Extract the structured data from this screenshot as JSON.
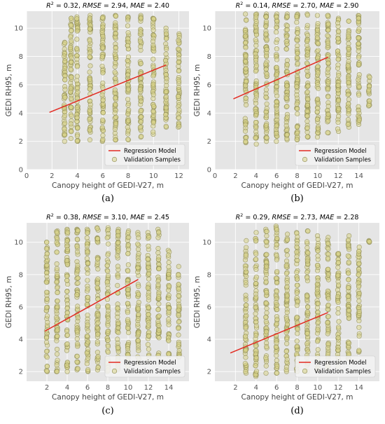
{
  "chart_data": [
    {
      "type": "scatter",
      "panel_label": "(a)",
      "title": "R² = 0.32, RMSE = 2.94, MAE = 2.40",
      "title_parts": {
        "r2_value": "0.32",
        "rmse_value": "2.94",
        "mae_value": "2.40"
      },
      "xlabel": "Canopy height of GEDI-V27, m",
      "ylabel": "GEDI RH95, m",
      "xlim": [
        0,
        12.8
      ],
      "ylim": [
        0,
        11.2
      ],
      "xticks": [
        0,
        2,
        4,
        6,
        8,
        10,
        12
      ],
      "yticks": [
        0,
        2,
        4,
        6,
        8,
        10
      ],
      "grid": true,
      "legend_position": "bottom-right",
      "legend": [
        "Regression Model",
        "Validation Samples"
      ],
      "regression_line": {
        "x": [
          1.8,
          11.0
        ],
        "y": [
          4.05,
          7.4
        ]
      },
      "series": [
        {
          "name": "Validation Samples",
          "marker": "circle",
          "columns": [
            {
              "x": 3,
              "ymin": 2.0,
              "ymax": 9.0
            },
            {
              "x": 3.5,
              "ymin": 2.2,
              "ymax": 10.7
            },
            {
              "x": 4,
              "ymin": 2.0,
              "ymax": 10.8
            },
            {
              "x": 5,
              "ymin": 2.1,
              "ymax": 10.9
            },
            {
              "x": 6,
              "ymin": 2.0,
              "ymax": 10.8
            },
            {
              "x": 7,
              "ymin": 2.1,
              "ymax": 10.9
            },
            {
              "x": 8,
              "ymin": 2.1,
              "ymax": 10.8
            },
            {
              "x": 9,
              "ymin": 2.3,
              "ymax": 10.9
            },
            {
              "x": 10,
              "ymin": 2.5,
              "ymax": 10.7
            },
            {
              "x": 11,
              "ymin": 3.0,
              "ymax": 10.0
            },
            {
              "x": 12,
              "ymin": 3.0,
              "ymax": 9.6
            }
          ]
        },
        {
          "name": "Regression Model",
          "type": "line",
          "color": "#e32b22"
        }
      ]
    },
    {
      "type": "scatter",
      "panel_label": "(b)",
      "title": "R² = 0.14, RMSE = 2.70, MAE = 2.90",
      "title_parts": {
        "r2_value": "0.14",
        "rmse_value": "2.70",
        "mae_value": "2.90"
      },
      "xlabel": "Canopy height of GEDI-V27, m",
      "ylabel": "GEDI RH95, m",
      "xlim": [
        0,
        16
      ],
      "ylim": [
        0,
        11.2
      ],
      "xticks": [
        0,
        2,
        4,
        6,
        8,
        10,
        12,
        14
      ],
      "yticks": [
        0,
        2,
        4,
        6,
        8,
        10
      ],
      "grid": true,
      "legend_position": "bottom-right",
      "legend": [
        "Regression Model",
        "Validation Samples"
      ],
      "regression_line": {
        "x": [
          1.8,
          11.0
        ],
        "y": [
          5.0,
          7.95
        ]
      },
      "series": [
        {
          "name": "Validation Samples",
          "marker": "circle",
          "columns": [
            {
              "x": 3,
              "ymin": 1.9,
              "ymax": 11.0
            },
            {
              "x": 4,
              "ymin": 1.8,
              "ymax": 11.0
            },
            {
              "x": 5,
              "ymin": 2.0,
              "ymax": 11.0
            },
            {
              "x": 6,
              "ymin": 2.0,
              "ymax": 11.0
            },
            {
              "x": 7,
              "ymin": 2.1,
              "ymax": 11.0
            },
            {
              "x": 8,
              "ymin": 2.1,
              "ymax": 11.0
            },
            {
              "x": 9,
              "ymin": 2.3,
              "ymax": 11.0
            },
            {
              "x": 10,
              "ymin": 2.3,
              "ymax": 10.9
            },
            {
              "x": 11,
              "ymin": 2.6,
              "ymax": 10.9
            },
            {
              "x": 12,
              "ymin": 2.7,
              "ymax": 10.7
            },
            {
              "x": 13,
              "ymin": 3.0,
              "ymax": 10.5
            },
            {
              "x": 14,
              "ymin": 3.2,
              "ymax": 10.9
            },
            {
              "x": 15,
              "ymin": 4.5,
              "ymax": 6.6
            }
          ]
        },
        {
          "name": "Regression Model",
          "type": "line",
          "color": "#e32b22"
        }
      ]
    },
    {
      "type": "scatter",
      "panel_label": "(c)",
      "title": "R² = 0.38, RMSE = 3.10, MAE = 2.45",
      "title_parts": {
        "r2_value": "0.38",
        "rmse_value": "3.10",
        "mae_value": "2.45"
      },
      "xlabel": "Canopy height of GEDI-V27, m",
      "ylabel": "GEDI RH95, m",
      "xlim": [
        0,
        16
      ],
      "ylim": [
        1.4,
        11.2
      ],
      "xticks": [
        2,
        4,
        6,
        8,
        10,
        12,
        14
      ],
      "yticks": [
        2,
        4,
        6,
        8,
        10
      ],
      "grid": true,
      "legend_position": "bottom-right",
      "legend": [
        "Regression Model",
        "Validation Samples"
      ],
      "regression_line": {
        "x": [
          1.8,
          11.0
        ],
        "y": [
          4.5,
          7.7
        ]
      },
      "series": [
        {
          "name": "Validation Samples",
          "marker": "circle",
          "columns": [
            {
              "x": 2,
              "ymin": 2.0,
              "ymax": 10.0
            },
            {
              "x": 3,
              "ymin": 2.0,
              "ymax": 10.7
            },
            {
              "x": 4,
              "ymin": 2.0,
              "ymax": 10.8
            },
            {
              "x": 5,
              "ymin": 2.1,
              "ymax": 10.8
            },
            {
              "x": 6,
              "ymin": 2.0,
              "ymax": 10.8
            },
            {
              "x": 7,
              "ymin": 2.1,
              "ymax": 10.9
            },
            {
              "x": 8,
              "ymin": 2.0,
              "ymax": 10.9
            },
            {
              "x": 9,
              "ymin": 2.1,
              "ymax": 10.8
            },
            {
              "x": 10,
              "ymin": 2.3,
              "ymax": 10.7
            },
            {
              "x": 11,
              "ymin": 2.5,
              "ymax": 10.6
            },
            {
              "x": 12,
              "ymin": 2.7,
              "ymax": 10.6
            },
            {
              "x": 13,
              "ymin": 2.9,
              "ymax": 10.8
            },
            {
              "x": 14,
              "ymin": 3.0,
              "ymax": 9.5
            },
            {
              "x": 15,
              "ymin": 2.9,
              "ymax": 8.5
            }
          ]
        },
        {
          "name": "Regression Model",
          "type": "line",
          "color": "#e32b22"
        }
      ]
    },
    {
      "type": "scatter",
      "panel_label": "(d)",
      "title": "R² = 0.29, RMSE = 2.73, MAE = 2.28",
      "title_parts": {
        "r2_value": "0.29",
        "rmse_value": "2.73",
        "mae_value": "2.28"
      },
      "xlabel": "Canopy height of GEDI-V27, m",
      "ylabel": "GEDI RH95, m",
      "xlim": [
        0,
        16
      ],
      "ylim": [
        1.4,
        11.2
      ],
      "xticks": [
        2,
        4,
        6,
        8,
        10,
        12,
        14
      ],
      "yticks": [
        2,
        4,
        6,
        8,
        10
      ],
      "grid": true,
      "legend_position": "bottom-right",
      "legend": [
        "Regression Model",
        "Validation Samples"
      ],
      "regression_line": {
        "x": [
          1.5,
          11.0
        ],
        "y": [
          3.15,
          5.65
        ]
      },
      "series": [
        {
          "name": "Validation Samples",
          "marker": "circle",
          "columns": [
            {
              "x": 3,
              "ymin": 1.9,
              "ymax": 10.1
            },
            {
              "x": 4,
              "ymin": 1.7,
              "ymax": 10.6
            },
            {
              "x": 5,
              "ymin": 1.9,
              "ymax": 10.8
            },
            {
              "x": 6,
              "ymin": 1.9,
              "ymax": 11.0
            },
            {
              "x": 7,
              "ymin": 2.0,
              "ymax": 10.5
            },
            {
              "x": 8,
              "ymin": 2.0,
              "ymax": 10.6
            },
            {
              "x": 9,
              "ymin": 2.0,
              "ymax": 10.7
            },
            {
              "x": 10,
              "ymin": 2.1,
              "ymax": 10.4
            },
            {
              "x": 11,
              "ymin": 2.2,
              "ymax": 10.3
            },
            {
              "x": 12,
              "ymin": 2.3,
              "ymax": 9.3
            },
            {
              "x": 13,
              "ymin": 2.8,
              "ymax": 10.4
            },
            {
              "x": 14,
              "ymin": 3.2,
              "ymax": 9.7
            },
            {
              "x": 15,
              "ymin": 10.0,
              "ymax": 10.1
            }
          ]
        },
        {
          "name": "Regression Model",
          "type": "line",
          "color": "#e32b22"
        }
      ]
    }
  ],
  "colors": {
    "plot_background": "#e5e5e5",
    "grid": "#ffffff",
    "marker_fill": "#d8d38a",
    "marker_edge": "#8c8a52",
    "regression": "#e32b22"
  }
}
